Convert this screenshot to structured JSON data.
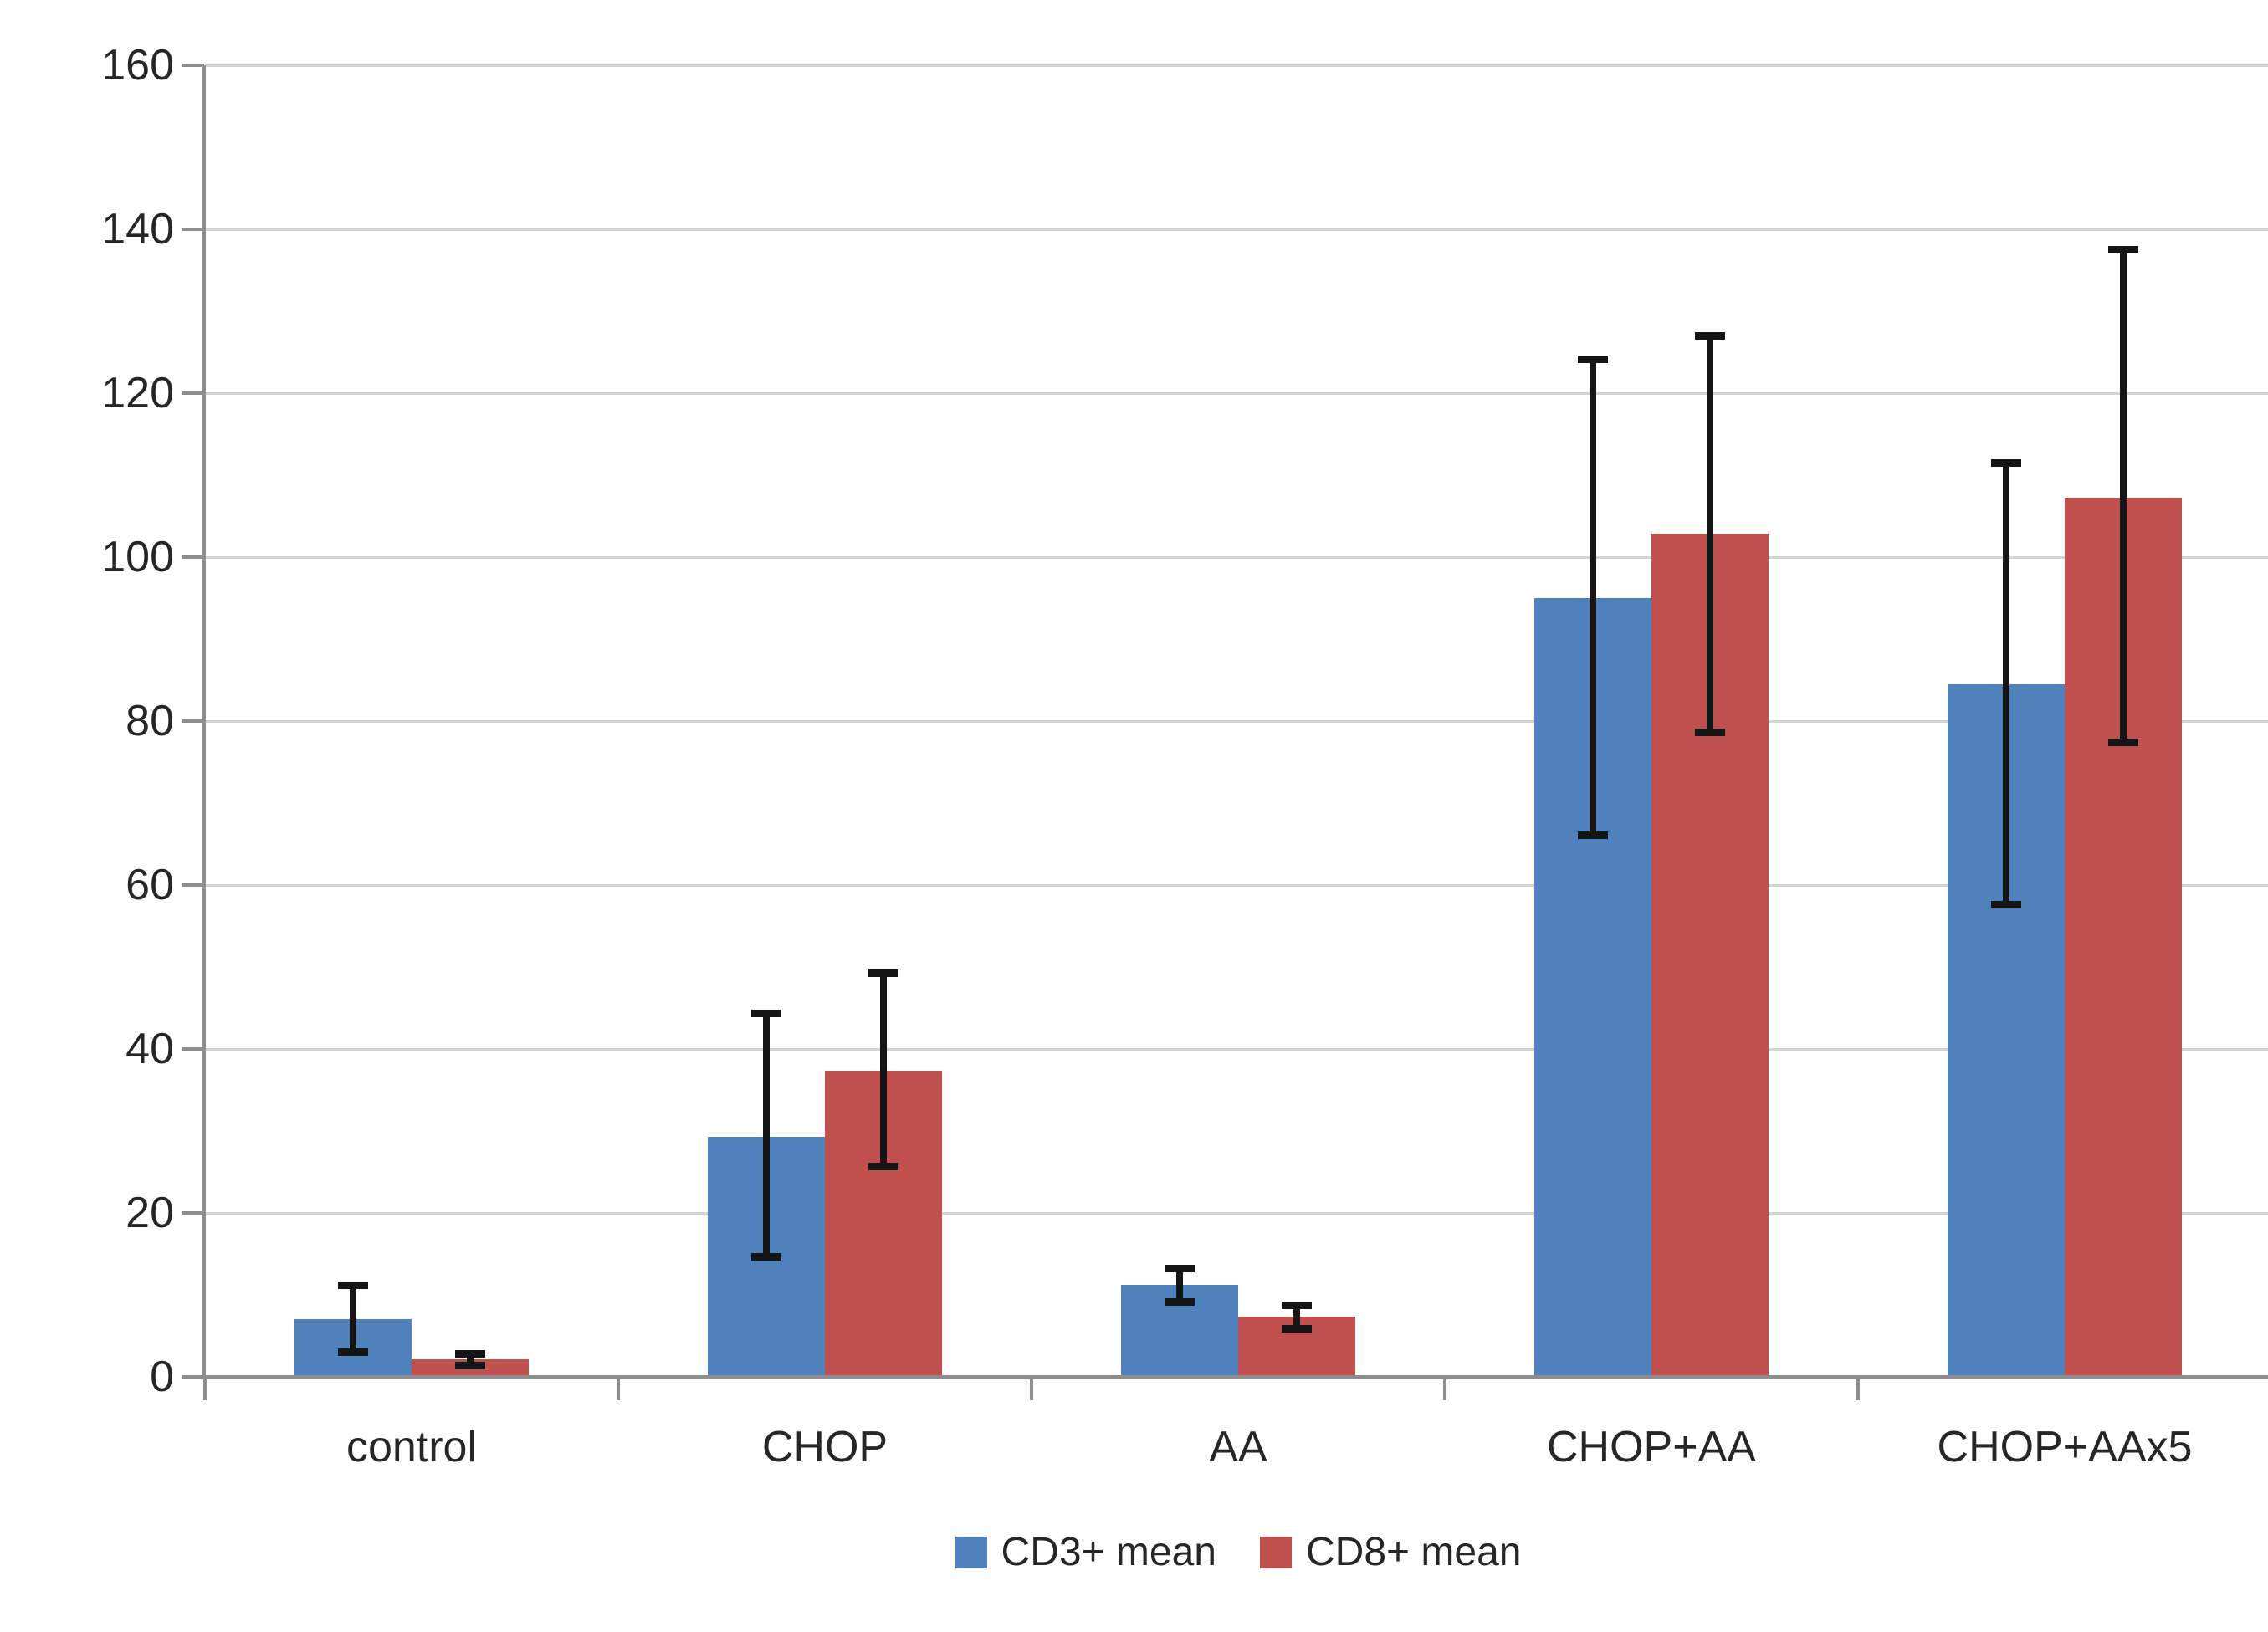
{
  "chart_data": {
    "type": "bar",
    "title": "",
    "xlabel": "",
    "ylabel": "",
    "categories": [
      "control",
      "CHOP",
      "AA",
      "CHOP+AA",
      "CHOP+AAx5"
    ],
    "series": [
      {
        "name": "CD3+ mean",
        "color": "#4F81BD",
        "values": [
          7.0,
          29.3,
          11.2,
          95.0,
          84.5
        ],
        "error_low": [
          2.5,
          14.2,
          8.7,
          65.6,
          57.1
        ],
        "error_high": [
          11.6,
          44.8,
          13.7,
          124.6,
          111.9
        ]
      },
      {
        "name": "CD8+ mean",
        "color": "#C0504D",
        "values": [
          2.1,
          37.3,
          7.3,
          102.9,
          107.2
        ],
        "error_low": [
          0.9,
          25.2,
          5.4,
          78.2,
          76.9
        ],
        "error_high": [
          3.3,
          49.7,
          9.2,
          127.5,
          138.0
        ]
      }
    ],
    "ylim": [
      0,
      160
    ],
    "yticks": [
      0,
      20,
      40,
      60,
      80,
      100,
      120,
      140,
      160
    ],
    "grid": true,
    "legend_position": "bottom",
    "style": {
      "background": "#FFFFFF",
      "gridline_color": "#D4D4D4",
      "axis_color": "#8E8E8E",
      "error_bar_color": "#151515",
      "text_color": "#262626",
      "plot_right_border_color": "#DDDDDD"
    }
  }
}
